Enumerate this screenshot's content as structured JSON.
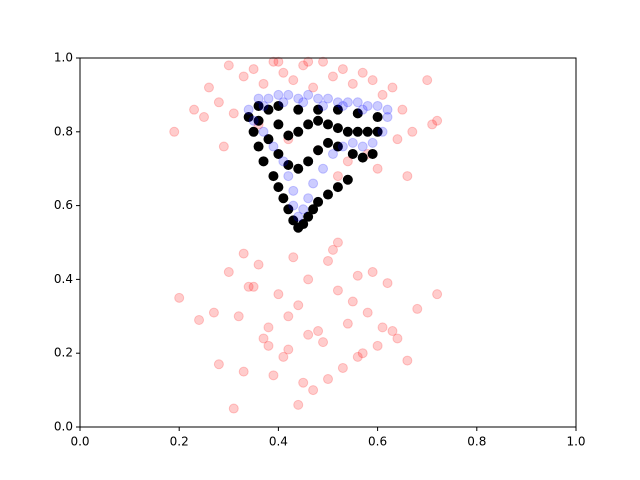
{
  "chart_data": {
    "type": "scatter",
    "xlim": [
      0,
      1
    ],
    "ylim": [
      0,
      1
    ],
    "xticks": [
      {
        "value": 0,
        "label": "0.0"
      },
      0.2,
      0.4,
      0.6,
      0.8,
      {
        "value": 1,
        "label": "1.0"
      }
    ],
    "yticks": [
      {
        "value": 0,
        "label": "0.0"
      },
      0.2,
      0.4,
      0.6,
      0.8,
      {
        "value": 1,
        "label": "1.0"
      }
    ],
    "series": [
      {
        "color": "#ff0000",
        "alpha": 0.2,
        "x": [
          0.3,
          0.33,
          0.35,
          0.37,
          0.39,
          0.41,
          0.43,
          0.45,
          0.47,
          0.49,
          0.51,
          0.53,
          0.55,
          0.57,
          0.59,
          0.61,
          0.63,
          0.65,
          0.67,
          0.7,
          0.72,
          0.26,
          0.28,
          0.25,
          0.31,
          0.36,
          0.42,
          0.48,
          0.54,
          0.6,
          0.66,
          0.71,
          0.19,
          0.23,
          0.29,
          0.64,
          0.58,
          0.52,
          0.46,
          0.4,
          0.2,
          0.24,
          0.27,
          0.3,
          0.32,
          0.34,
          0.36,
          0.38,
          0.4,
          0.42,
          0.44,
          0.46,
          0.48,
          0.5,
          0.52,
          0.54,
          0.56,
          0.58,
          0.6,
          0.62,
          0.64,
          0.66,
          0.68,
          0.72,
          0.28,
          0.33,
          0.37,
          0.41,
          0.45,
          0.49,
          0.53,
          0.57,
          0.61,
          0.39,
          0.43,
          0.47,
          0.51,
          0.55,
          0.35,
          0.59,
          0.31,
          0.44,
          0.5,
          0.46,
          0.33,
          0.38,
          0.42,
          0.52,
          0.56,
          0.63
        ],
        "y": [
          0.98,
          0.95,
          0.97,
          0.93,
          0.99,
          0.96,
          0.94,
          0.98,
          0.92,
          0.99,
          0.95,
          0.97,
          0.93,
          0.96,
          0.94,
          0.9,
          0.92,
          0.86,
          0.8,
          0.94,
          0.83,
          0.92,
          0.88,
          0.84,
          0.85,
          0.82,
          0.78,
          0.75,
          0.72,
          0.7,
          0.68,
          0.82,
          0.8,
          0.86,
          0.76,
          0.78,
          0.74,
          0.68,
          0.99,
          0.99,
          0.35,
          0.29,
          0.31,
          0.42,
          0.3,
          0.38,
          0.44,
          0.27,
          0.36,
          0.21,
          0.33,
          0.4,
          0.26,
          0.45,
          0.37,
          0.28,
          0.41,
          0.31,
          0.22,
          0.39,
          0.24,
          0.18,
          0.32,
          0.36,
          0.17,
          0.15,
          0.24,
          0.19,
          0.12,
          0.23,
          0.16,
          0.2,
          0.27,
          0.14,
          0.46,
          0.1,
          0.48,
          0.34,
          0.38,
          0.42,
          0.05,
          0.06,
          0.13,
          0.25,
          0.47,
          0.22,
          0.3,
          0.5,
          0.19,
          0.26
        ]
      },
      {
        "color": "#000000",
        "alpha": 1,
        "x": [
          0.34,
          0.35,
          0.36,
          0.37,
          0.39,
          0.4,
          0.41,
          0.42,
          0.43,
          0.44,
          0.45,
          0.46,
          0.47,
          0.48,
          0.5,
          0.52,
          0.54,
          0.36,
          0.38,
          0.4,
          0.42,
          0.44,
          0.46,
          0.48,
          0.5,
          0.52,
          0.55,
          0.57,
          0.59,
          0.38,
          0.4,
          0.42,
          0.44,
          0.46,
          0.48,
          0.5,
          0.52,
          0.54,
          0.56,
          0.58,
          0.6,
          0.36,
          0.4,
          0.44,
          0.48,
          0.52,
          0.56,
          0.6
        ],
        "y": [
          0.84,
          0.8,
          0.76,
          0.72,
          0.68,
          0.65,
          0.62,
          0.59,
          0.56,
          0.54,
          0.55,
          0.57,
          0.59,
          0.61,
          0.63,
          0.65,
          0.67,
          0.83,
          0.78,
          0.74,
          0.71,
          0.7,
          0.72,
          0.75,
          0.77,
          0.76,
          0.74,
          0.73,
          0.74,
          0.86,
          0.82,
          0.79,
          0.8,
          0.82,
          0.83,
          0.82,
          0.81,
          0.8,
          0.8,
          0.8,
          0.8,
          0.87,
          0.87,
          0.86,
          0.86,
          0.86,
          0.85,
          0.84
        ]
      },
      {
        "color": "#0000ff",
        "alpha": 0.2,
        "x": [
          0.34,
          0.35,
          0.37,
          0.39,
          0.41,
          0.42,
          0.43,
          0.43,
          0.44,
          0.45,
          0.46,
          0.47,
          0.49,
          0.51,
          0.53,
          0.55,
          0.57,
          0.59,
          0.61,
          0.62,
          0.36,
          0.38,
          0.4,
          0.42,
          0.44,
          0.46,
          0.48,
          0.5,
          0.52,
          0.54,
          0.56,
          0.58,
          0.6,
          0.62,
          0.37,
          0.41,
          0.45,
          0.49,
          0.53,
          0.57
        ],
        "y": [
          0.86,
          0.83,
          0.8,
          0.76,
          0.72,
          0.68,
          0.64,
          0.6,
          0.57,
          0.59,
          0.62,
          0.66,
          0.7,
          0.74,
          0.76,
          0.77,
          0.76,
          0.77,
          0.8,
          0.84,
          0.89,
          0.89,
          0.9,
          0.9,
          0.89,
          0.9,
          0.89,
          0.89,
          0.88,
          0.88,
          0.88,
          0.87,
          0.87,
          0.86,
          0.87,
          0.88,
          0.88,
          0.87,
          0.87,
          0.86
        ]
      }
    ]
  }
}
